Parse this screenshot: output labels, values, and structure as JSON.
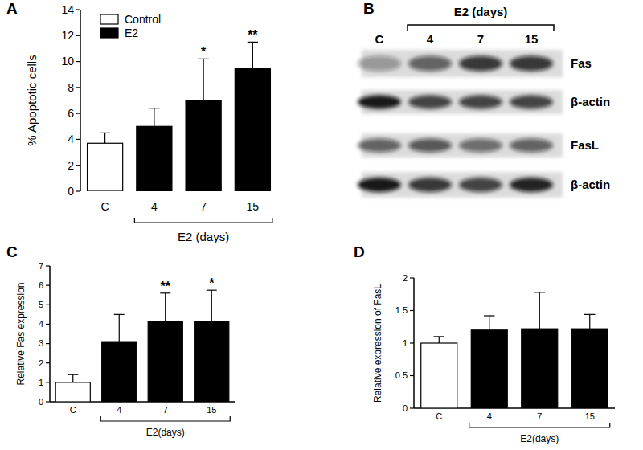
{
  "chart_data": [
    {
      "type": "bar",
      "title": "A",
      "y_label": "% Apoptotic cells",
      "x_label": "E2 (days)",
      "categories": [
        "C",
        "4",
        "7",
        "15"
      ],
      "series": [
        {
          "name": "Control",
          "color": "#ffffff",
          "values": [
            3.7,
            null,
            null,
            null
          ],
          "errors": [
            0.8,
            null,
            null,
            null
          ]
        },
        {
          "name": "E2",
          "color": "#000000",
          "values": [
            null,
            5.0,
            7.0,
            9.5
          ],
          "errors": [
            null,
            1.4,
            3.2,
            2.0
          ]
        }
      ],
      "annotations": [
        null,
        null,
        "*",
        "**"
      ],
      "ylim": [
        0,
        14
      ],
      "yticks": [
        0,
        2,
        4,
        6,
        8,
        10,
        12,
        14
      ],
      "legend": "upper-left"
    },
    {
      "type": "blot",
      "title": "B",
      "header": "E2 (days)",
      "lanes": [
        "C",
        "4",
        "7",
        "15"
      ],
      "bands": [
        {
          "name": "Fas",
          "intensity": [
            0.35,
            0.6,
            0.8,
            0.8
          ]
        },
        {
          "name": "β-actin",
          "intensity": [
            0.95,
            0.75,
            0.75,
            0.75
          ]
        },
        {
          "name": "FasL",
          "intensity": [
            0.6,
            0.65,
            0.55,
            0.6
          ]
        },
        {
          "name": "β-actin",
          "intensity": [
            0.95,
            0.8,
            0.75,
            0.9
          ]
        }
      ]
    },
    {
      "type": "bar",
      "title": "C",
      "y_label": "Relative Fas expression",
      "x_label": "E2(days)",
      "categories": [
        "C",
        "4",
        "7",
        "15"
      ],
      "values": [
        1.0,
        3.1,
        4.15,
        4.15
      ],
      "errors": [
        0.4,
        1.4,
        1.45,
        1.6
      ],
      "colors": [
        "#ffffff",
        "#000000",
        "#000000",
        "#000000"
      ],
      "annotations": [
        null,
        null,
        "**",
        "*"
      ],
      "ylim": [
        0,
        7
      ],
      "yticks": [
        0,
        1,
        2,
        3,
        4,
        5,
        6,
        7
      ]
    },
    {
      "type": "bar",
      "title": "D",
      "y_label": "Relative expression of FasL",
      "x_label": "E2(days)",
      "categories": [
        "C",
        "4",
        "7",
        "15"
      ],
      "values": [
        1.0,
        1.2,
        1.22,
        1.22
      ],
      "errors": [
        0.1,
        0.22,
        0.56,
        0.22
      ],
      "colors": [
        "#ffffff",
        "#000000",
        "#000000",
        "#000000"
      ],
      "ylim": [
        0,
        2
      ],
      "yticks": [
        0,
        0.5,
        1,
        1.5,
        2
      ]
    }
  ]
}
